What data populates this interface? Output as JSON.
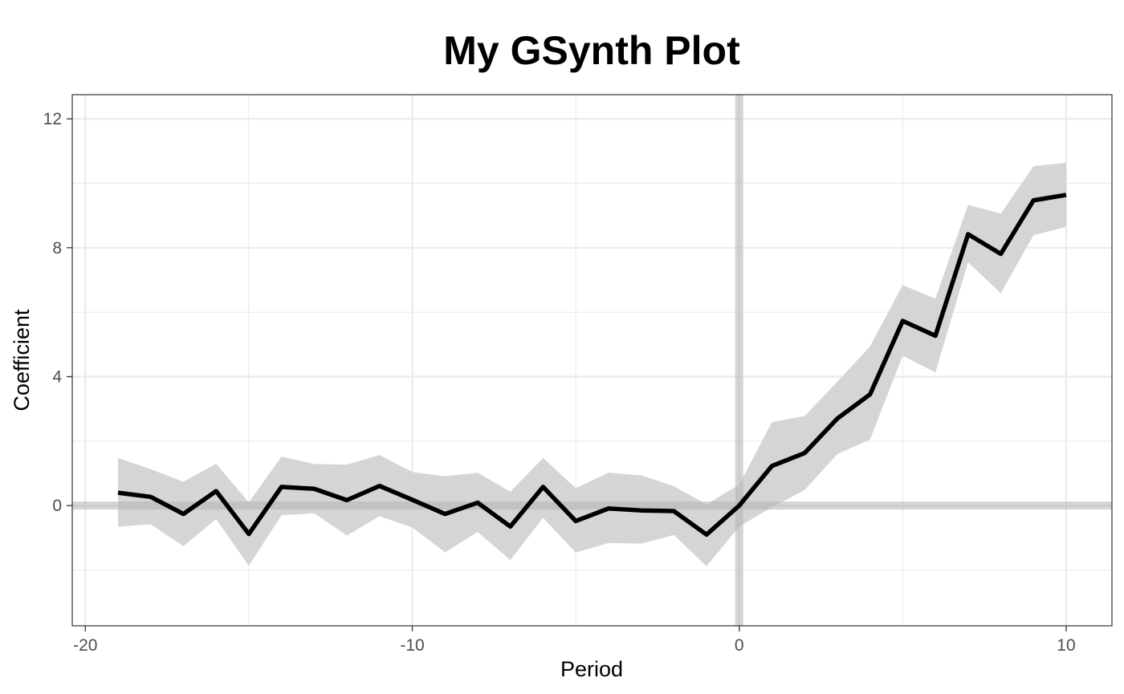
{
  "chart_data": {
    "type": "line",
    "title": "My GSynth Plot",
    "xlabel": "Period",
    "ylabel": "Coefficient",
    "xlim": [
      -20.4,
      11.4
    ],
    "ylim": [
      -3.73,
      12.75
    ],
    "x_ticks": [
      -20,
      -10,
      0,
      10
    ],
    "x_tick_labels": [
      "-20",
      "-10",
      "0",
      "10"
    ],
    "y_ticks": [
      0,
      4,
      8,
      12
    ],
    "y_tick_labels": [
      "0",
      "4",
      "8",
      "12"
    ],
    "grid": true,
    "legend": "none",
    "reference_lines": {
      "x": 0,
      "y": 0
    },
    "colors": {
      "line": "#000000",
      "band": "#d5d5d5",
      "reference": "#b3b3b3",
      "grid": "#ebebeb",
      "panel_border": "#333333"
    },
    "series": [
      {
        "x": [
          -19,
          -18,
          -17,
          -16,
          -15,
          -14,
          -13,
          -12,
          -11,
          -10,
          -9,
          -8,
          -7,
          -6,
          -5,
          -4,
          -3,
          -2,
          -1,
          0,
          1,
          2,
          3,
          4,
          5,
          6,
          7,
          8,
          9,
          10
        ],
        "values": [
          0.4,
          0.27,
          -0.26,
          0.45,
          -0.88,
          0.58,
          0.52,
          0.17,
          0.61,
          0.18,
          -0.26,
          0.09,
          -0.65,
          0.58,
          -0.48,
          -0.09,
          -0.15,
          -0.17,
          -0.9,
          0.0,
          1.23,
          1.63,
          2.7,
          3.45,
          5.73,
          5.27,
          8.42,
          7.81,
          9.47,
          9.64
        ],
        "lower": [
          -0.66,
          -0.58,
          -1.26,
          -0.42,
          -1.87,
          -0.3,
          -0.24,
          -0.93,
          -0.33,
          -0.68,
          -1.45,
          -0.82,
          -1.69,
          -0.38,
          -1.46,
          -1.16,
          -1.18,
          -0.91,
          -1.88,
          -0.65,
          -0.05,
          0.48,
          1.6,
          2.05,
          4.65,
          4.13,
          7.55,
          6.59,
          8.39,
          8.65
        ],
        "upper": [
          1.48,
          1.13,
          0.74,
          1.3,
          0.1,
          1.52,
          1.29,
          1.27,
          1.57,
          1.04,
          0.91,
          1.02,
          0.43,
          1.48,
          0.54,
          1.02,
          0.94,
          0.6,
          0.04,
          0.65,
          2.59,
          2.78,
          3.84,
          4.94,
          6.84,
          6.42,
          9.33,
          9.06,
          10.53,
          10.64
        ]
      }
    ]
  }
}
